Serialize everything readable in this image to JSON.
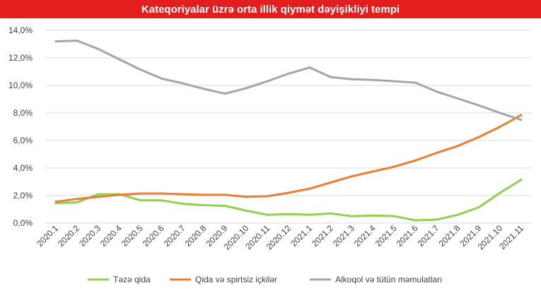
{
  "chart_data": {
    "type": "line",
    "title": "Kateqoriyalar üzrə orta illik qiymət dəyişikliyi tempi",
    "title_background": "#e21e1e",
    "categories": [
      "2020.1",
      "2020.2",
      "2020.3",
      "2020.4",
      "2020.5",
      "2020.6",
      "2020.7",
      "2020.8",
      "2020.9",
      "2020.10",
      "2020.11",
      "2020.12",
      "2021.1",
      "2021.2",
      "2021.3",
      "2021.4",
      "2021.5",
      "2021.6",
      "2021.7",
      "2021.8",
      "2021.9",
      "2021.10",
      "2021.11"
    ],
    "y_ticks": [
      "0,0%",
      "2,0%",
      "4,0%",
      "6,0%",
      "8,0%",
      "10,0%",
      "12,0%",
      "14,0%"
    ],
    "ylim": [
      0,
      14
    ],
    "grid": true,
    "legend_position": "bottom",
    "series": [
      {
        "name": "Təzə qida",
        "color": "#92d050",
        "values": [
          1.45,
          1.5,
          2.1,
          2.1,
          1.65,
          1.65,
          1.4,
          1.3,
          1.25,
          0.9,
          0.6,
          0.65,
          0.6,
          0.7,
          0.5,
          0.55,
          0.5,
          0.2,
          0.25,
          0.6,
          1.15,
          2.2,
          3.15
        ]
      },
      {
        "name": "Qida və spirtsiz içkilər",
        "color": "#ed7d31",
        "values": [
          1.55,
          1.75,
          1.9,
          2.05,
          2.15,
          2.15,
          2.1,
          2.05,
          2.05,
          1.9,
          1.95,
          2.2,
          2.5,
          2.95,
          3.4,
          3.75,
          4.1,
          4.55,
          5.1,
          5.6,
          6.25,
          7.0,
          7.85
        ]
      },
      {
        "name": "Alkoqol və tütün məmulatları",
        "color": "#a5a5a5",
        "values": [
          13.2,
          13.25,
          12.65,
          11.9,
          11.15,
          10.5,
          10.15,
          9.75,
          9.4,
          9.8,
          10.3,
          10.85,
          11.3,
          10.6,
          10.45,
          10.4,
          10.3,
          10.2,
          9.55,
          9.05,
          8.55,
          8.0,
          7.5
        ]
      }
    ]
  }
}
